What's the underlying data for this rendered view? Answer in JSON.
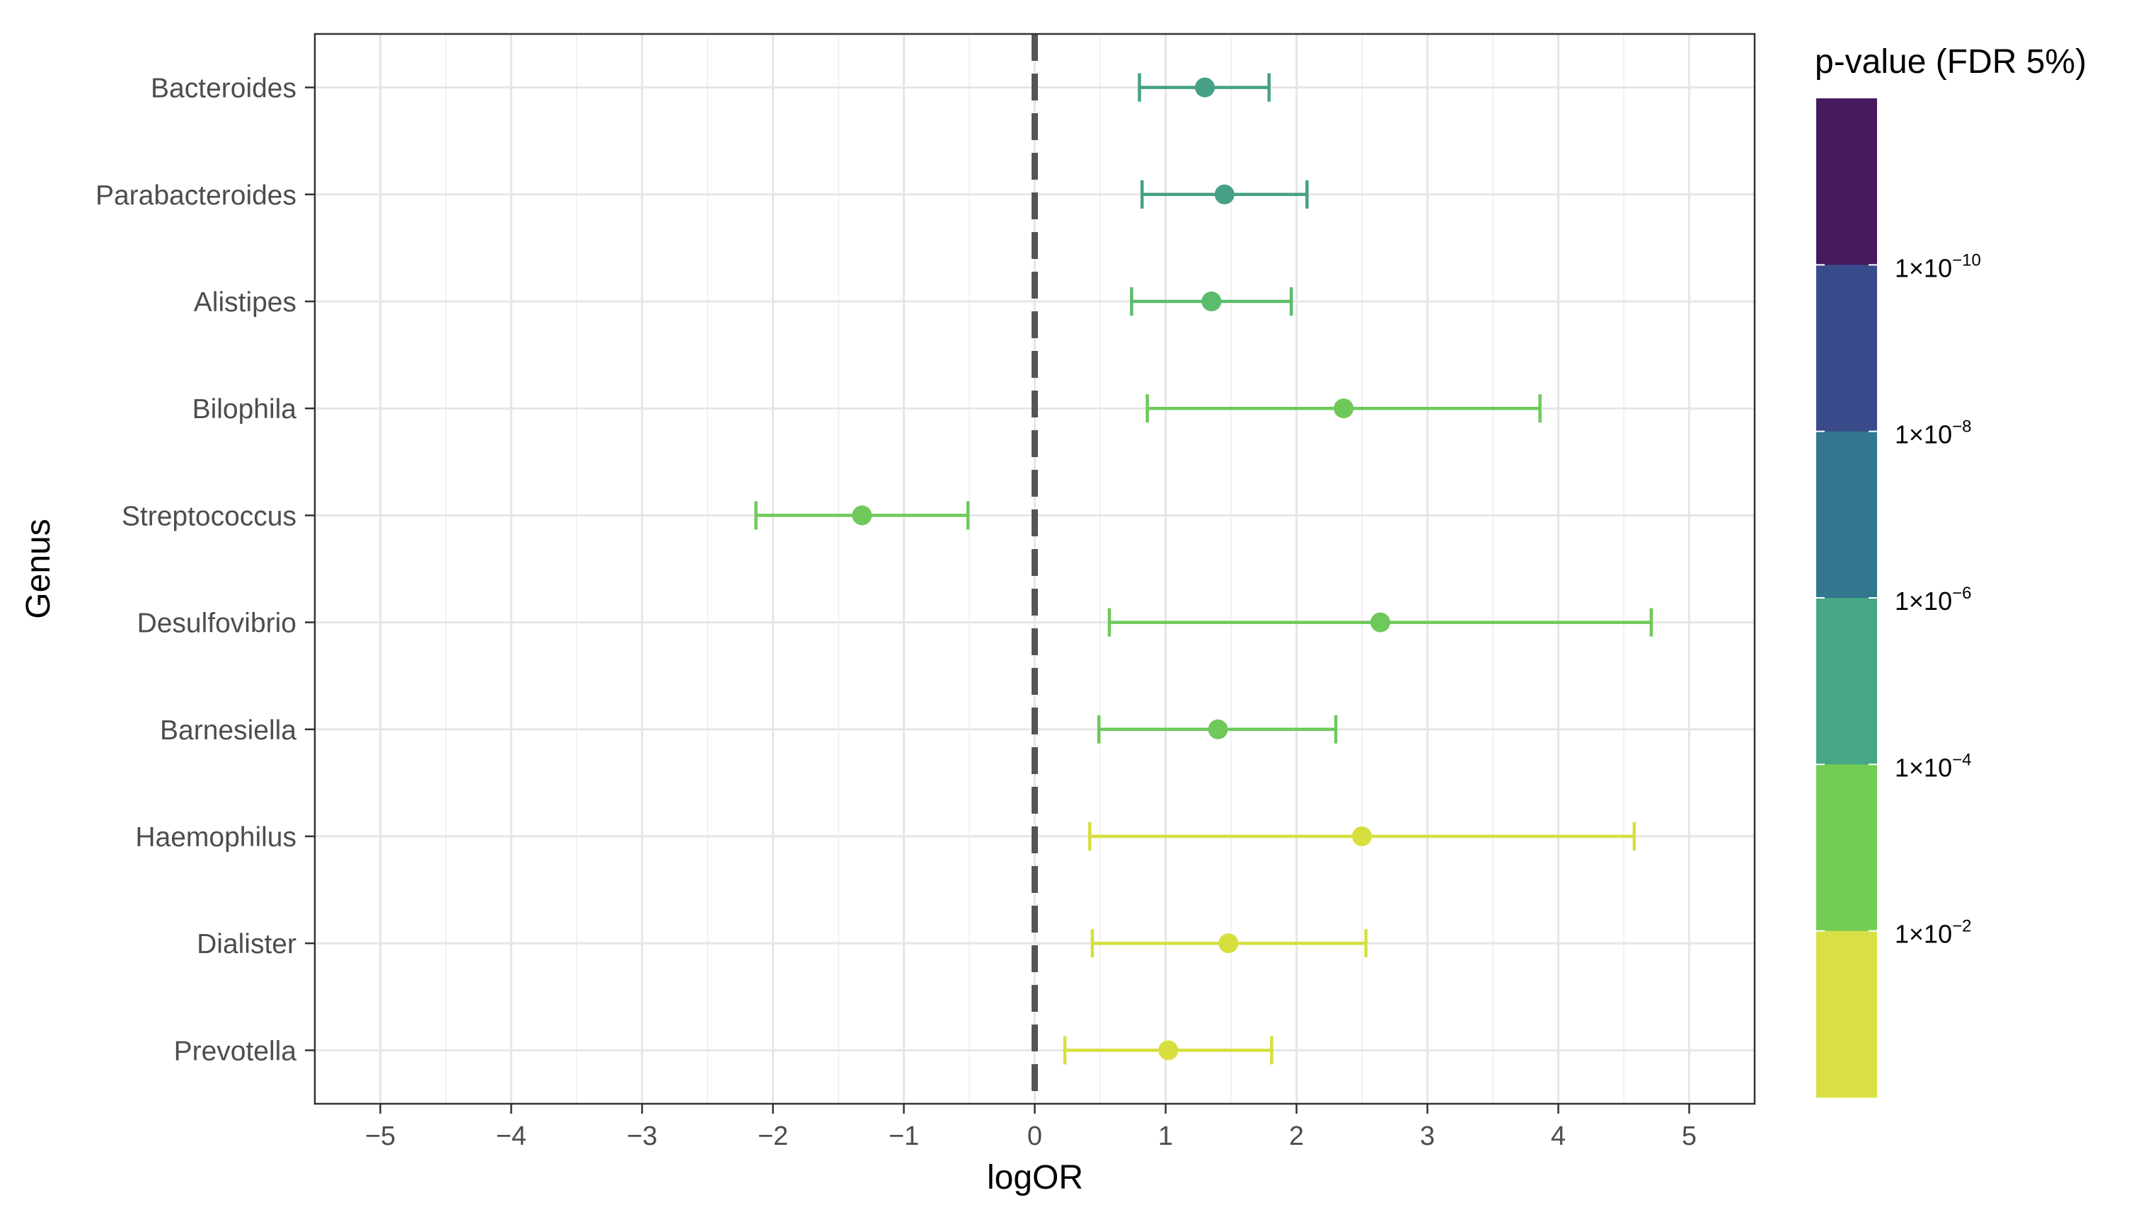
{
  "chart_data": {
    "type": "forest",
    "xlabel": "logOR",
    "ylabel": "Genus",
    "xlim": [
      -5.5,
      5.5
    ],
    "x_ticks": [
      "−5",
      "−4",
      "−3",
      "−2",
      "−1",
      "0",
      "1",
      "2",
      "3",
      "4",
      "5"
    ],
    "x_tick_values": [
      -5,
      -4,
      -3,
      -2,
      -1,
      0,
      1,
      2,
      3,
      4,
      5
    ],
    "reference_line": 0,
    "grid": true,
    "categories": [
      "Bacteroides",
      "Parabacteroides",
      "Alistipes",
      "Bilophila",
      "Streptococcus",
      "Desulfovibrio",
      "Barnesiella",
      "Haemophilus",
      "Dialister",
      "Prevotella"
    ],
    "estimates": [
      {
        "genus": "Bacteroides",
        "logOR": 1.3,
        "ci_low": 0.8,
        "ci_high": 1.79,
        "color": "#45a085"
      },
      {
        "genus": "Parabacteroides",
        "logOR": 1.45,
        "ci_low": 0.82,
        "ci_high": 2.08,
        "color": "#45a085"
      },
      {
        "genus": "Alistipes",
        "logOR": 1.35,
        "ci_low": 0.74,
        "ci_high": 1.96,
        "color": "#5bbc6b"
      },
      {
        "genus": "Bilophila",
        "logOR": 2.36,
        "ci_low": 0.86,
        "ci_high": 3.86,
        "color": "#6ec95a"
      },
      {
        "genus": "Streptococcus",
        "logOR": -1.32,
        "ci_low": -2.13,
        "ci_high": -0.51,
        "color": "#6ec95a"
      },
      {
        "genus": "Desulfovibrio",
        "logOR": 2.64,
        "ci_low": 0.57,
        "ci_high": 4.71,
        "color": "#6ec95a"
      },
      {
        "genus": "Barnesiella",
        "logOR": 1.4,
        "ci_low": 0.49,
        "ci_high": 2.3,
        "color": "#6ec95a"
      },
      {
        "genus": "Haemophilus",
        "logOR": 2.5,
        "ci_low": 0.42,
        "ci_high": 4.58,
        "color": "#d6df3e"
      },
      {
        "genus": "Dialister",
        "logOR": 1.48,
        "ci_low": 0.44,
        "ci_high": 2.53,
        "color": "#d6df3e"
      },
      {
        "genus": "Prevotella",
        "logOR": 1.02,
        "ci_low": 0.23,
        "ci_high": 1.81,
        "color": "#d6df3e"
      }
    ],
    "legend": {
      "title": "p-value (FDR 5%)",
      "position": "right",
      "scale": "log",
      "bands": [
        "#461a5f",
        "#3a4b8c",
        "#32778e",
        "#47a684",
        "#72cc54",
        "#d8e046"
      ],
      "labels": [
        {
          "base": "1×10",
          "exp": "−10"
        },
        {
          "base": "1×10",
          "exp": "−8"
        },
        {
          "base": "1×10",
          "exp": "−6"
        },
        {
          "base": "1×10",
          "exp": "−4"
        },
        {
          "base": "1×10",
          "exp": "−2"
        }
      ]
    }
  }
}
